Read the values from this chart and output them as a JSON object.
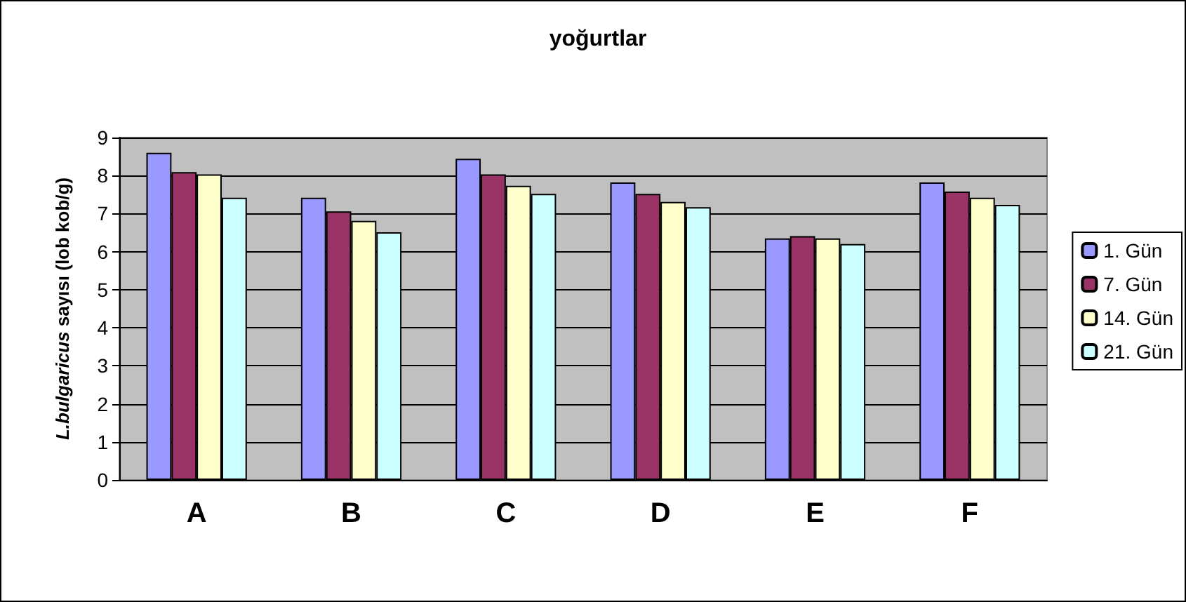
{
  "chart_data": {
    "type": "bar",
    "title": "yoğurtlar",
    "ylabel": "L.bulgaricus sayısı (lob kob/g)",
    "categories": [
      "A",
      "B",
      "C",
      "D",
      "E",
      "F"
    ],
    "series": [
      {
        "name": "1. Gün",
        "color": "#9999ff",
        "values": [
          8.6,
          7.42,
          8.44,
          7.82,
          6.35,
          7.82
        ]
      },
      {
        "name": "7. Gün",
        "color": "#993366",
        "values": [
          8.09,
          7.06,
          8.03,
          7.52,
          6.41,
          7.58
        ]
      },
      {
        "name": "14. Gün",
        "color": "#ffffcc",
        "values": [
          8.03,
          6.81,
          7.73,
          7.31,
          6.35,
          7.42
        ]
      },
      {
        "name": "21. Gün",
        "color": "#ccffff",
        "values": [
          7.42,
          6.51,
          7.52,
          7.17,
          6.2,
          7.23
        ]
      }
    ],
    "ylim": [
      0,
      9
    ],
    "yticks": [
      0,
      1,
      2,
      3,
      4,
      5,
      6,
      7,
      8,
      9
    ],
    "grid": "y",
    "legend": "right"
  }
}
